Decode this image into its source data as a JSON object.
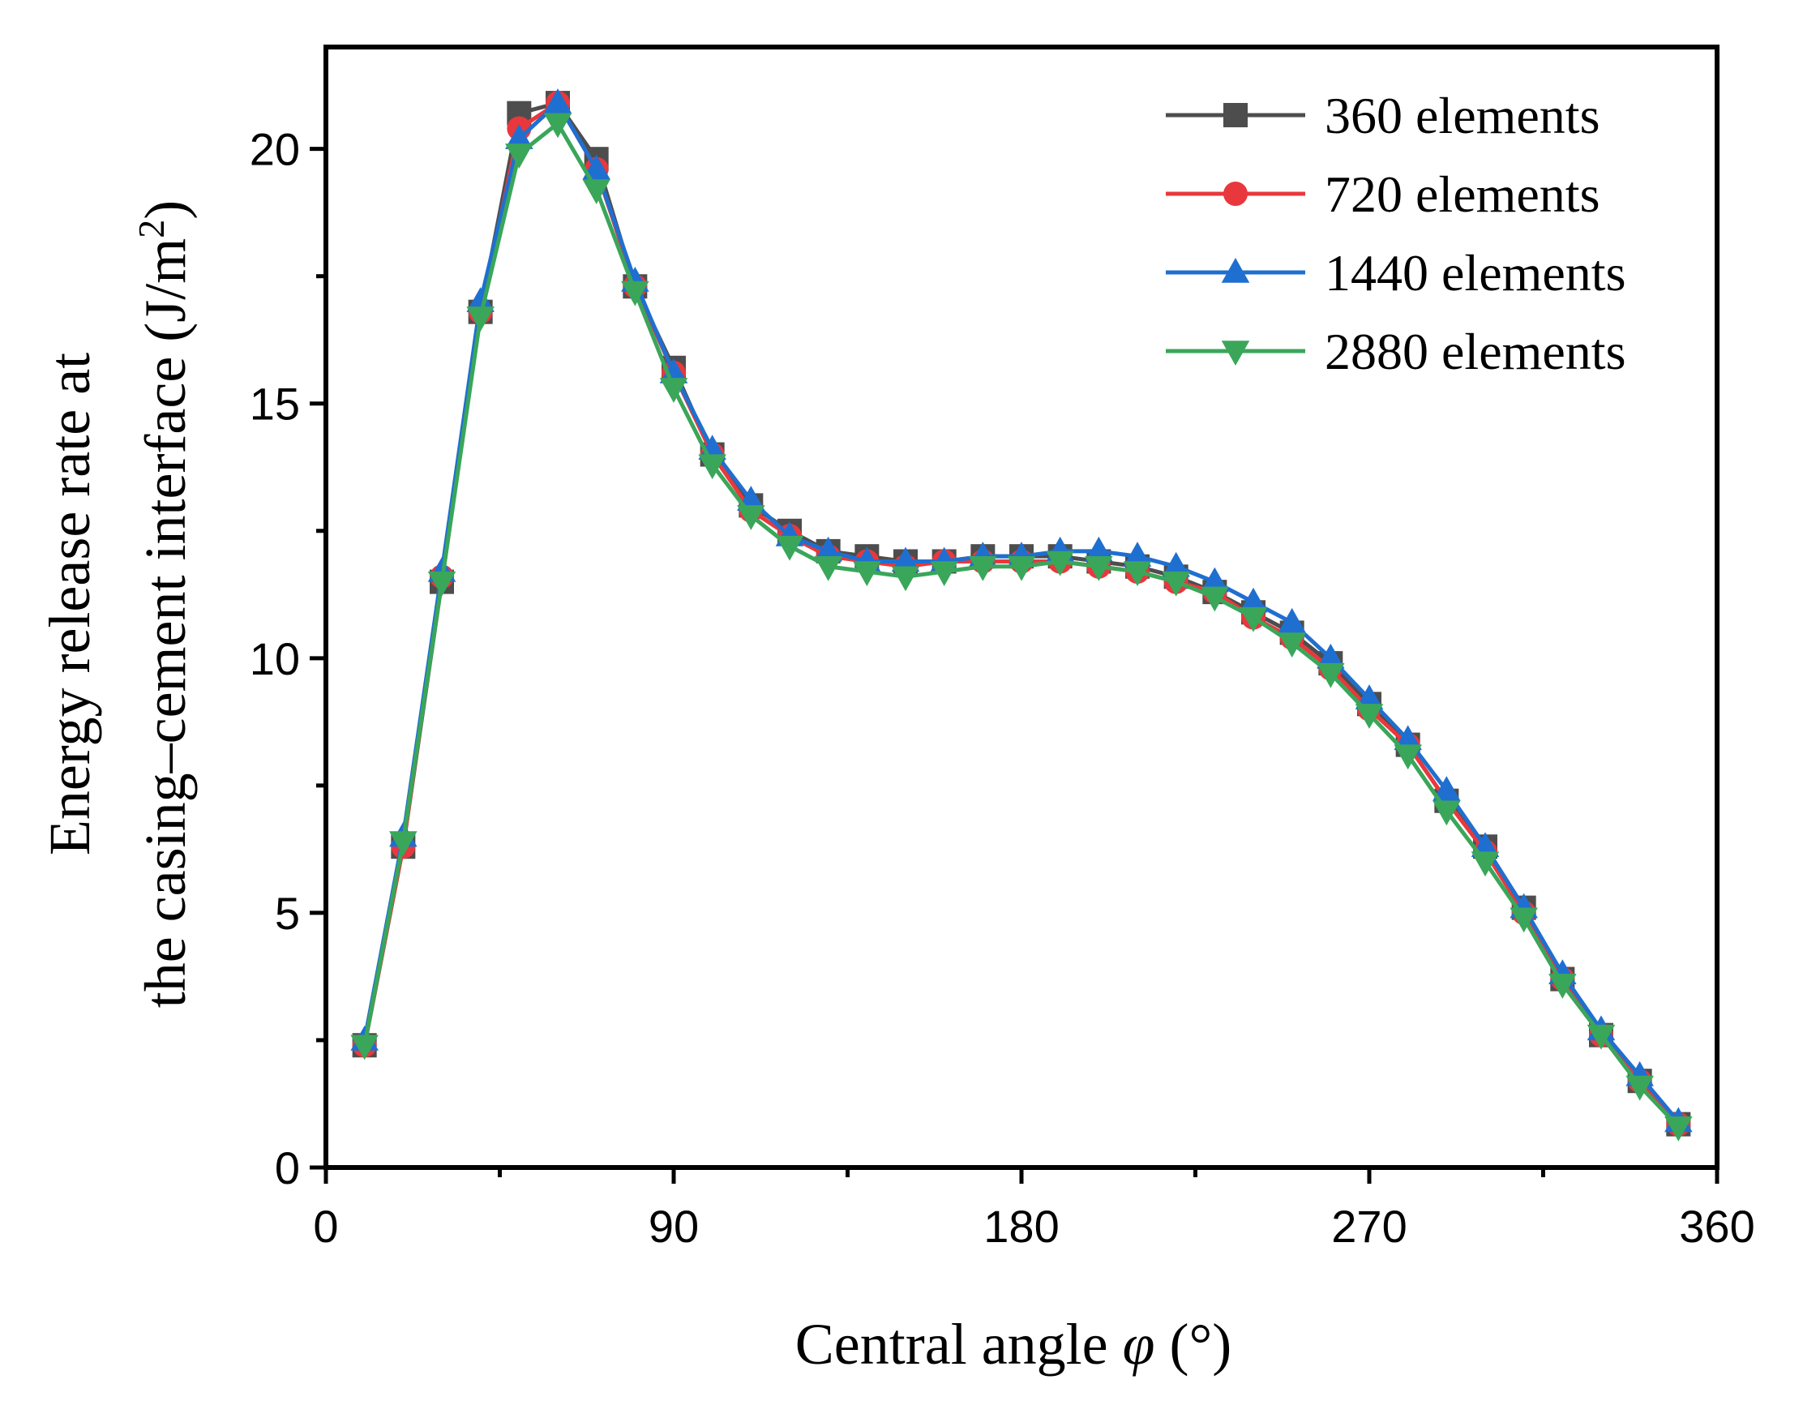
{
  "chart_data": {
    "type": "line",
    "title": "",
    "xlabel": "Central angle φ (°)",
    "xlabel_parts": [
      "Central angle ",
      "φ",
      " (°)"
    ],
    "ylabel_lines": [
      "Energy release rate at",
      "the casing–cement interface (J/m",
      "2",
      ")"
    ],
    "xlim": [
      0,
      360
    ],
    "ylim": [
      0,
      22
    ],
    "xticks": [
      0,
      90,
      180,
      270,
      360
    ],
    "xtick_labels": [
      "0",
      "90",
      "180",
      "270",
      "360"
    ],
    "yticks": [
      0,
      5,
      10,
      15,
      20
    ],
    "ytick_labels": [
      "0",
      "5",
      "10",
      "15",
      "20"
    ],
    "x": [
      10,
      20,
      30,
      40,
      50,
      60,
      70,
      80,
      90,
      100,
      110,
      120,
      130,
      140,
      150,
      160,
      170,
      180,
      190,
      200,
      210,
      220,
      230,
      240,
      250,
      260,
      270,
      280,
      290,
      300,
      310,
      320,
      330,
      340,
      350
    ],
    "legend_position": "top-right",
    "series": [
      {
        "name": "360 elements",
        "color": "#4d4d4d",
        "marker": "square",
        "values": [
          2.4,
          6.3,
          11.5,
          16.8,
          20.7,
          20.9,
          19.8,
          17.3,
          15.7,
          14.0,
          13.0,
          12.5,
          12.1,
          12.0,
          11.9,
          11.9,
          12.0,
          12.0,
          12.0,
          11.9,
          11.8,
          11.6,
          11.3,
          10.9,
          10.5,
          9.9,
          9.1,
          8.3,
          7.2,
          6.3,
          5.1,
          3.7,
          2.6,
          1.7,
          0.85
        ]
      },
      {
        "name": "720 elements",
        "color": "#e8383d",
        "marker": "circle",
        "values": [
          2.4,
          6.3,
          11.6,
          16.8,
          20.4,
          20.9,
          19.6,
          17.3,
          15.6,
          14.0,
          12.9,
          12.4,
          12.0,
          11.9,
          11.8,
          11.9,
          11.9,
          11.9,
          11.9,
          11.8,
          11.7,
          11.5,
          11.3,
          10.8,
          10.4,
          9.8,
          9.0,
          8.3,
          7.2,
          6.2,
          5.0,
          3.7,
          2.6,
          1.7,
          0.85
        ]
      },
      {
        "name": "1440 elements",
        "color": "#1f6fd0",
        "marker": "triangle-up",
        "values": [
          2.5,
          6.5,
          11.7,
          17.0,
          20.2,
          20.9,
          19.6,
          17.4,
          15.6,
          14.1,
          13.1,
          12.4,
          12.1,
          11.9,
          11.9,
          11.9,
          12.0,
          12.0,
          12.1,
          12.1,
          12.0,
          11.8,
          11.5,
          11.1,
          10.7,
          10.0,
          9.2,
          8.4,
          7.4,
          6.3,
          5.1,
          3.8,
          2.7,
          1.8,
          0.9
        ]
      },
      {
        "name": "2880 elements",
        "color": "#3aa65a",
        "marker": "triangle-down",
        "values": [
          2.4,
          6.4,
          11.5,
          16.7,
          19.9,
          20.5,
          19.2,
          17.2,
          15.3,
          13.8,
          12.8,
          12.2,
          11.8,
          11.7,
          11.6,
          11.7,
          11.8,
          11.8,
          11.9,
          11.8,
          11.7,
          11.5,
          11.2,
          10.8,
          10.3,
          9.7,
          8.9,
          8.1,
          7.0,
          6.0,
          4.9,
          3.6,
          2.6,
          1.6,
          0.8
        ]
      }
    ]
  }
}
